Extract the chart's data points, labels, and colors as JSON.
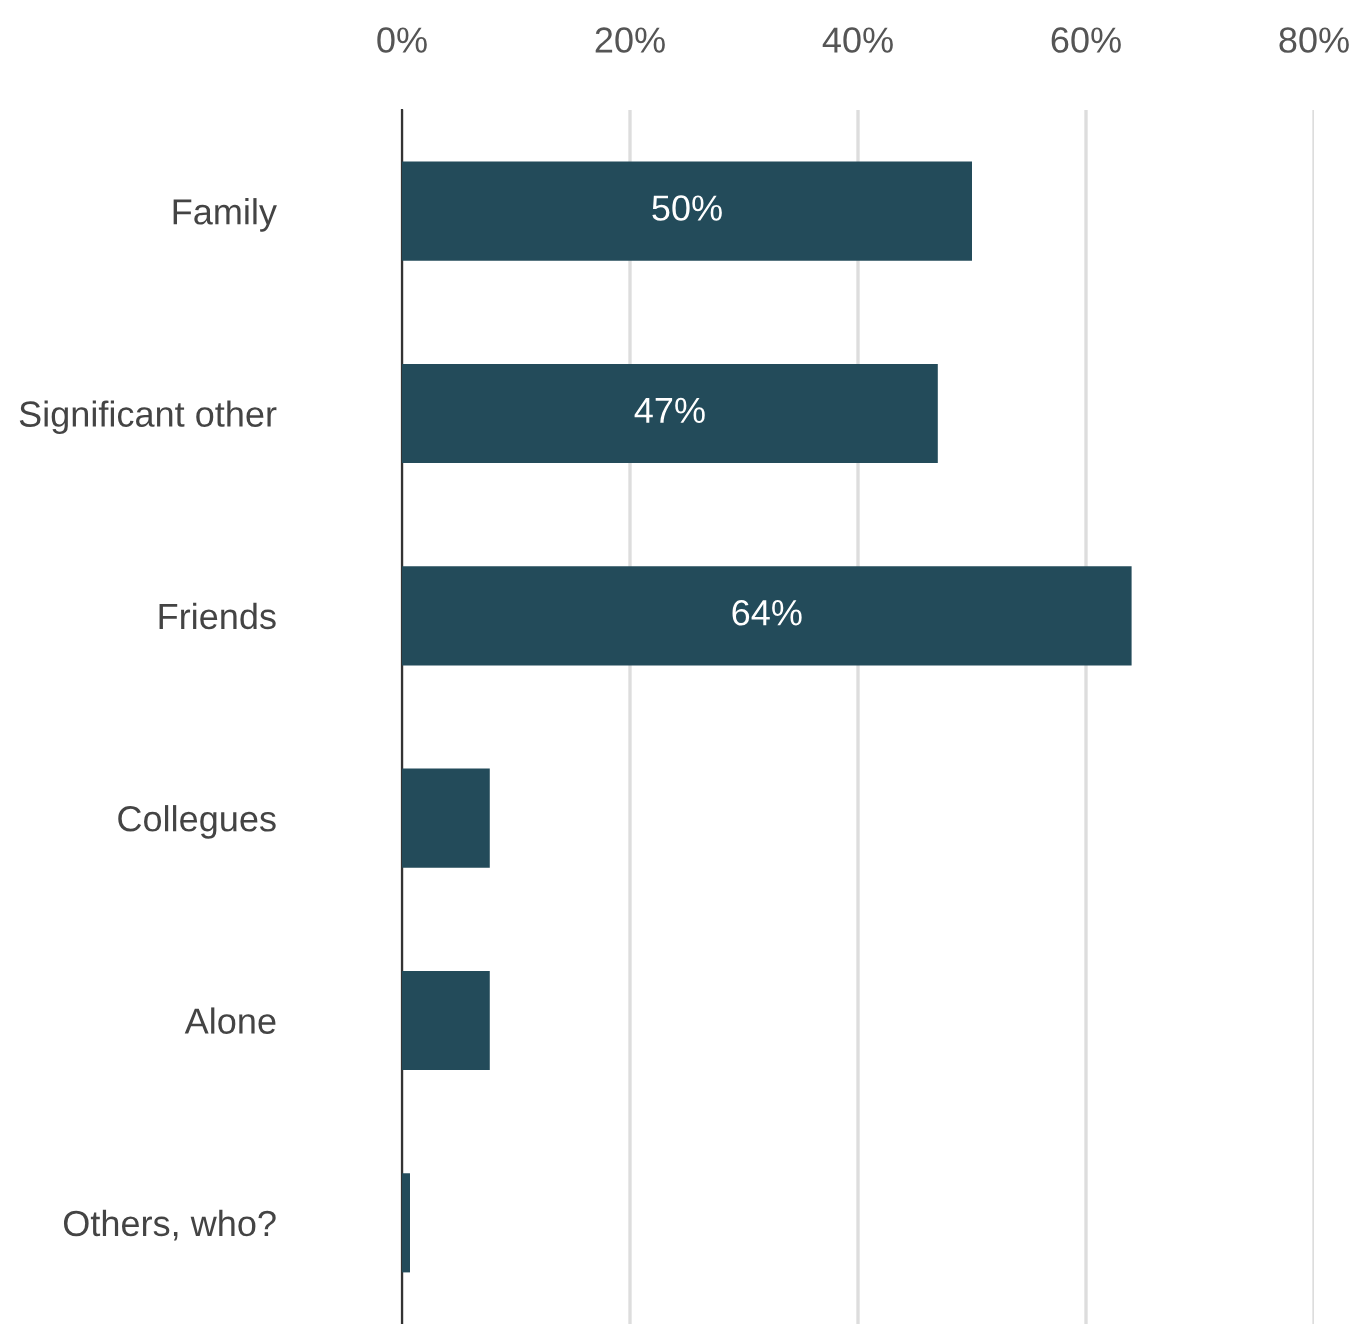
{
  "chart_data": {
    "type": "bar",
    "orientation": "horizontal",
    "categories": [
      "Family",
      "Significant other",
      "Friends",
      "Collegues",
      "Alone",
      "Others, who?"
    ],
    "values": [
      50,
      47,
      64,
      7.7,
      7.7,
      0.7
    ],
    "value_labels": [
      "50%",
      "47%",
      "64%",
      null,
      null,
      null
    ],
    "color": "#234b5a",
    "xlim": [
      0,
      80
    ],
    "xticks": [
      {
        "value": 0,
        "label": "0%"
      },
      {
        "value": 20,
        "label": "20%"
      },
      {
        "value": 40,
        "label": "40%"
      },
      {
        "value": 60,
        "label": "60%"
      },
      {
        "value": 80,
        "label": "80%"
      }
    ],
    "grid": "x"
  }
}
